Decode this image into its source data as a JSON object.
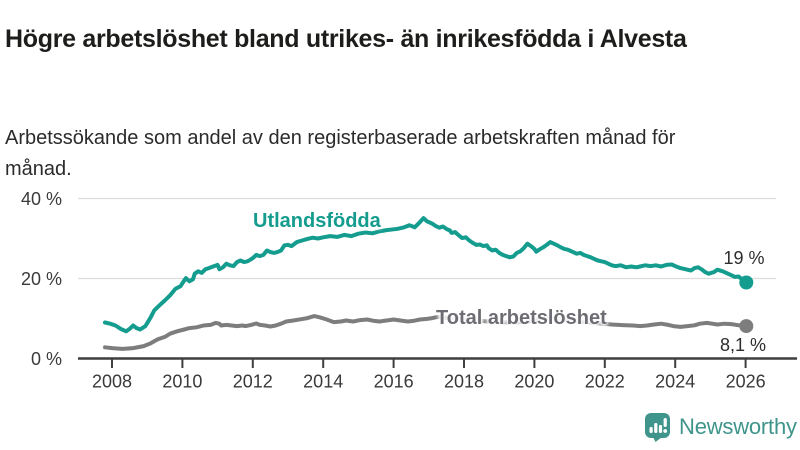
{
  "chart_data": {
    "type": "line",
    "title": "Högre arbetslöshet bland utrikes- än inrikesfödda i Alvesta",
    "subtitle": "Arbetssökande som andel av den registerbaserade arbetskraften månad för månad.",
    "x_ticks": [
      2008,
      2010,
      2012,
      2014,
      2016,
      2018,
      2020,
      2022,
      2024,
      2026
    ],
    "y_ticks": [
      {
        "value": 0,
        "label": "0 %"
      },
      {
        "value": 20,
        "label": "20 %"
      },
      {
        "value": 40,
        "label": "40 %"
      }
    ],
    "x_range": [
      2007.8,
      2026.1
    ],
    "ylim": [
      0,
      40
    ],
    "grid": true,
    "legend_position": "inline-labels",
    "axis_color": "#3f3f3f",
    "grid_color": "#dcdcdc",
    "series": [
      {
        "name": "Utlandsfödda",
        "color": "#149c8e",
        "end_value": 19,
        "end_label": "19 %",
        "points": [
          [
            2007.8,
            9.0
          ],
          [
            2007.95,
            8.7
          ],
          [
            2008.1,
            8.25
          ],
          [
            2008.25,
            7.4
          ],
          [
            2008.4,
            6.8
          ],
          [
            2008.5,
            7.4
          ],
          [
            2008.6,
            8.25
          ],
          [
            2008.7,
            7.6
          ],
          [
            2008.8,
            7.25
          ],
          [
            2008.95,
            8.1
          ],
          [
            2009.1,
            10.3
          ],
          [
            2009.2,
            12.0
          ],
          [
            2009.35,
            13.3
          ],
          [
            2009.5,
            14.5
          ],
          [
            2009.65,
            15.8
          ],
          [
            2009.8,
            17.4
          ],
          [
            2009.95,
            18.1
          ],
          [
            2010.05,
            19.5
          ],
          [
            2010.1,
            20.1
          ],
          [
            2010.2,
            19.3
          ],
          [
            2010.3,
            19.8
          ],
          [
            2010.35,
            21.2
          ],
          [
            2010.45,
            21.8
          ],
          [
            2010.55,
            21.4
          ],
          [
            2010.65,
            22.3
          ],
          [
            2010.75,
            22.6
          ],
          [
            2010.9,
            23.1
          ],
          [
            2011.0,
            23.4
          ],
          [
            2011.05,
            22.3
          ],
          [
            2011.15,
            22.8
          ],
          [
            2011.25,
            23.7
          ],
          [
            2011.35,
            23.3
          ],
          [
            2011.45,
            23.1
          ],
          [
            2011.55,
            24.1
          ],
          [
            2011.65,
            24.5
          ],
          [
            2011.75,
            24.1
          ],
          [
            2011.85,
            24.3
          ],
          [
            2011.95,
            24.8
          ],
          [
            2012.0,
            25.1
          ],
          [
            2012.1,
            25.9
          ],
          [
            2012.2,
            25.6
          ],
          [
            2012.3,
            25.9
          ],
          [
            2012.4,
            27.0
          ],
          [
            2012.5,
            26.6
          ],
          [
            2012.6,
            26.4
          ],
          [
            2012.7,
            26.6
          ],
          [
            2012.8,
            27.0
          ],
          [
            2012.9,
            28.3
          ],
          [
            2013.0,
            28.4
          ],
          [
            2013.1,
            28.1
          ],
          [
            2013.25,
            29.1
          ],
          [
            2013.4,
            29.5
          ],
          [
            2013.55,
            29.9
          ],
          [
            2013.7,
            30.2
          ],
          [
            2013.85,
            30.0
          ],
          [
            2014.0,
            30.3
          ],
          [
            2014.2,
            30.6
          ],
          [
            2014.4,
            30.4
          ],
          [
            2014.6,
            30.9
          ],
          [
            2014.8,
            30.6
          ],
          [
            2015.0,
            31.2
          ],
          [
            2015.2,
            31.5
          ],
          [
            2015.4,
            31.3
          ],
          [
            2015.6,
            31.8
          ],
          [
            2015.8,
            32.1
          ],
          [
            2016.0,
            32.3
          ],
          [
            2016.1,
            32.4
          ],
          [
            2016.3,
            32.8
          ],
          [
            2016.45,
            33.3
          ],
          [
            2016.6,
            32.8
          ],
          [
            2016.75,
            34.1
          ],
          [
            2016.85,
            35.1
          ],
          [
            2016.95,
            34.3
          ],
          [
            2017.1,
            33.7
          ],
          [
            2017.2,
            33.1
          ],
          [
            2017.3,
            32.7
          ],
          [
            2017.4,
            33.0
          ],
          [
            2017.5,
            32.4
          ],
          [
            2017.6,
            32.0
          ],
          [
            2017.65,
            31.4
          ],
          [
            2017.75,
            31.6
          ],
          [
            2017.85,
            30.8
          ],
          [
            2017.95,
            30.1
          ],
          [
            2018.05,
            30.3
          ],
          [
            2018.15,
            29.5
          ],
          [
            2018.25,
            28.9
          ],
          [
            2018.35,
            28.4
          ],
          [
            2018.45,
            28.5
          ],
          [
            2018.55,
            28.1
          ],
          [
            2018.65,
            28.3
          ],
          [
            2018.7,
            27.6
          ],
          [
            2018.8,
            27.0
          ],
          [
            2018.9,
            27.2
          ],
          [
            2019.0,
            26.4
          ],
          [
            2019.1,
            25.9
          ],
          [
            2019.2,
            25.6
          ],
          [
            2019.3,
            25.3
          ],
          [
            2019.4,
            25.5
          ],
          [
            2019.5,
            26.4
          ],
          [
            2019.6,
            26.8
          ],
          [
            2019.7,
            27.6
          ],
          [
            2019.8,
            28.7
          ],
          [
            2019.9,
            28.1
          ],
          [
            2020.0,
            27.4
          ],
          [
            2020.05,
            26.7
          ],
          [
            2020.15,
            27.3
          ],
          [
            2020.25,
            27.8
          ],
          [
            2020.35,
            28.4
          ],
          [
            2020.45,
            29.1
          ],
          [
            2020.55,
            28.7
          ],
          [
            2020.65,
            28.3
          ],
          [
            2020.75,
            27.8
          ],
          [
            2020.85,
            27.4
          ],
          [
            2020.95,
            27.2
          ],
          [
            2021.0,
            27.0
          ],
          [
            2021.1,
            26.6
          ],
          [
            2021.2,
            26.2
          ],
          [
            2021.3,
            26.4
          ],
          [
            2021.4,
            25.9
          ],
          [
            2021.5,
            25.6
          ],
          [
            2021.6,
            25.3
          ],
          [
            2021.7,
            24.9
          ],
          [
            2021.8,
            24.5
          ],
          [
            2021.9,
            24.3
          ],
          [
            2022.0,
            24.1
          ],
          [
            2022.1,
            23.7
          ],
          [
            2022.2,
            23.3
          ],
          [
            2022.3,
            23.1
          ],
          [
            2022.45,
            23.3
          ],
          [
            2022.6,
            22.8
          ],
          [
            2022.75,
            23.0
          ],
          [
            2022.9,
            22.8
          ],
          [
            2023.0,
            23.0
          ],
          [
            2023.15,
            23.3
          ],
          [
            2023.3,
            23.1
          ],
          [
            2023.45,
            23.3
          ],
          [
            2023.6,
            23.0
          ],
          [
            2023.75,
            23.4
          ],
          [
            2023.9,
            23.5
          ],
          [
            2024.0,
            23.1
          ],
          [
            2024.15,
            22.6
          ],
          [
            2024.3,
            22.3
          ],
          [
            2024.45,
            22.0
          ],
          [
            2024.55,
            22.6
          ],
          [
            2024.65,
            22.8
          ],
          [
            2024.75,
            22.3
          ],
          [
            2024.85,
            21.6
          ],
          [
            2024.95,
            21.2
          ],
          [
            2025.1,
            21.6
          ],
          [
            2025.2,
            22.2
          ],
          [
            2025.35,
            21.8
          ],
          [
            2025.5,
            21.2
          ],
          [
            2025.6,
            20.8
          ],
          [
            2025.7,
            20.4
          ],
          [
            2025.8,
            20.5
          ],
          [
            2025.88,
            19.9
          ],
          [
            2025.95,
            19.5
          ],
          [
            2026.02,
            19.0
          ]
        ]
      },
      {
        "name": "Total arbetslöshet",
        "color": "#7d7d7d",
        "end_value": 8.1,
        "end_label": "8,1 %",
        "points": [
          [
            2007.8,
            2.8
          ],
          [
            2008.0,
            2.6
          ],
          [
            2008.3,
            2.4
          ],
          [
            2008.6,
            2.6
          ],
          [
            2008.9,
            3.1
          ],
          [
            2009.1,
            3.8
          ],
          [
            2009.3,
            4.8
          ],
          [
            2009.5,
            5.4
          ],
          [
            2009.65,
            6.2
          ],
          [
            2009.85,
            6.8
          ],
          [
            2010.05,
            7.25
          ],
          [
            2010.2,
            7.6
          ],
          [
            2010.4,
            7.8
          ],
          [
            2010.6,
            8.25
          ],
          [
            2010.8,
            8.4
          ],
          [
            2010.95,
            8.9
          ],
          [
            2011.05,
            8.7
          ],
          [
            2011.1,
            8.25
          ],
          [
            2011.25,
            8.4
          ],
          [
            2011.4,
            8.25
          ],
          [
            2011.55,
            8.1
          ],
          [
            2011.7,
            8.25
          ],
          [
            2011.8,
            8.1
          ],
          [
            2011.95,
            8.4
          ],
          [
            2012.1,
            8.75
          ],
          [
            2012.2,
            8.4
          ],
          [
            2012.35,
            8.25
          ],
          [
            2012.5,
            8.0
          ],
          [
            2012.65,
            8.25
          ],
          [
            2012.8,
            8.7
          ],
          [
            2012.95,
            9.25
          ],
          [
            2013.15,
            9.5
          ],
          [
            2013.35,
            9.8
          ],
          [
            2013.55,
            10.1
          ],
          [
            2013.75,
            10.6
          ],
          [
            2013.9,
            10.3
          ],
          [
            2014.1,
            9.75
          ],
          [
            2014.3,
            9.1
          ],
          [
            2014.5,
            9.25
          ],
          [
            2014.65,
            9.5
          ],
          [
            2014.85,
            9.25
          ],
          [
            2015.05,
            9.6
          ],
          [
            2015.25,
            9.75
          ],
          [
            2015.45,
            9.4
          ],
          [
            2015.6,
            9.25
          ],
          [
            2015.8,
            9.5
          ],
          [
            2016.0,
            9.75
          ],
          [
            2016.2,
            9.5
          ],
          [
            2016.4,
            9.25
          ],
          [
            2016.55,
            9.4
          ],
          [
            2016.75,
            9.75
          ],
          [
            2016.95,
            9.9
          ],
          [
            2017.1,
            10.1
          ],
          [
            2017.25,
            10.4
          ],
          [
            2017.5,
            10.2
          ],
          [
            2017.8,
            9.9
          ],
          [
            2018.2,
            9.6
          ],
          [
            2018.6,
            9.3
          ],
          [
            2019.0,
            9.1
          ],
          [
            2019.4,
            9.0
          ],
          [
            2019.8,
            9.2
          ],
          [
            2020.2,
            9.9
          ],
          [
            2020.45,
            10.3
          ],
          [
            2020.7,
            10.0
          ],
          [
            2021.0,
            9.6
          ],
          [
            2021.4,
            9.2
          ],
          [
            2021.8,
            8.8
          ],
          [
            2022.2,
            8.5
          ],
          [
            2022.5,
            8.35
          ],
          [
            2022.8,
            8.25
          ],
          [
            2023.0,
            8.1
          ],
          [
            2023.2,
            8.25
          ],
          [
            2023.4,
            8.5
          ],
          [
            2023.6,
            8.7
          ],
          [
            2023.8,
            8.4
          ],
          [
            2023.95,
            8.1
          ],
          [
            2024.15,
            7.9
          ],
          [
            2024.35,
            8.1
          ],
          [
            2024.55,
            8.3
          ],
          [
            2024.7,
            8.7
          ],
          [
            2024.9,
            8.9
          ],
          [
            2025.05,
            8.7
          ],
          [
            2025.2,
            8.5
          ],
          [
            2025.4,
            8.7
          ],
          [
            2025.6,
            8.6
          ],
          [
            2025.8,
            8.3
          ],
          [
            2025.95,
            8.2
          ],
          [
            2026.02,
            8.1
          ]
        ]
      }
    ]
  },
  "branding": {
    "name": "Newsworthy",
    "logo_icon": "bar-chart-speech-bubble",
    "color": "#3f948b"
  }
}
